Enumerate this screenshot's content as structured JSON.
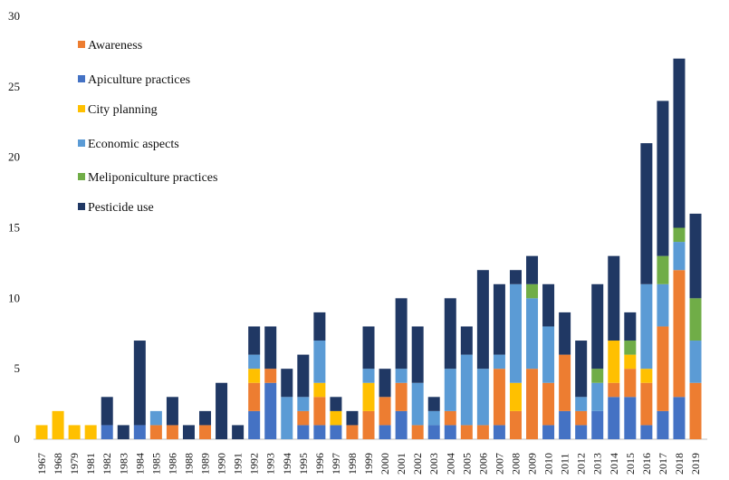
{
  "chart_data": {
    "type": "bar",
    "stacked": true,
    "title": "",
    "xlabel": "",
    "ylabel": "",
    "ylim": [
      0,
      30
    ],
    "yticks": [
      0,
      5,
      10,
      15,
      20,
      25,
      30
    ],
    "grid": false,
    "legend_position": "top-left",
    "categories": [
      "1967",
      "1968",
      "1979",
      "1981",
      "1982",
      "1983",
      "1984",
      "1985",
      "1986",
      "1988",
      "1989",
      "1990",
      "1991",
      "1992",
      "1993",
      "1994",
      "1995",
      "1996",
      "1997",
      "1998",
      "1999",
      "2000",
      "2001",
      "2002",
      "2003",
      "2004",
      "2005",
      "2006",
      "2007",
      "2008",
      "2009",
      "2010",
      "2011",
      "2012",
      "2013",
      "2014",
      "2015",
      "2016",
      "2017",
      "2018",
      "2019"
    ],
    "series": [
      {
        "name": "Apiculture practices",
        "color": "#4472C4",
        "values": [
          0,
          0,
          0,
          0,
          1,
          0,
          1,
          0,
          0,
          0,
          0,
          0,
          0,
          2,
          4,
          0,
          1,
          1,
          1,
          0,
          0,
          1,
          2,
          0,
          1,
          1,
          0,
          0,
          1,
          0,
          0,
          1,
          2,
          1,
          2,
          3,
          3,
          1,
          2,
          3,
          0
        ]
      },
      {
        "name": "Awareness",
        "color": "#ED7D31",
        "values": [
          0,
          0,
          0,
          0,
          0,
          0,
          0,
          1,
          1,
          0,
          1,
          0,
          0,
          2,
          1,
          0,
          1,
          2,
          0,
          1,
          2,
          2,
          2,
          1,
          0,
          1,
          1,
          1,
          4,
          2,
          5,
          3,
          4,
          1,
          0,
          1,
          2,
          3,
          6,
          9,
          4
        ]
      },
      {
        "name": "City planning",
        "color": "#FFC000",
        "values": [
          1,
          2,
          1,
          1,
          0,
          0,
          0,
          0,
          0,
          0,
          0,
          0,
          0,
          1,
          0,
          0,
          0,
          1,
          1,
          0,
          2,
          0,
          0,
          0,
          0,
          0,
          0,
          0,
          0,
          2,
          0,
          0,
          0,
          0,
          0,
          3,
          1,
          1,
          0,
          0,
          0
        ]
      },
      {
        "name": "Economic aspects",
        "color": "#5B9BD5",
        "values": [
          0,
          0,
          0,
          0,
          0,
          0,
          0,
          1,
          0,
          0,
          0,
          0,
          0,
          1,
          0,
          3,
          1,
          3,
          0,
          0,
          1,
          0,
          1,
          3,
          1,
          3,
          5,
          4,
          1,
          7,
          5,
          4,
          0,
          1,
          2,
          0,
          0,
          6,
          3,
          2,
          3
        ]
      },
      {
        "name": "Meliponiculture practices",
        "color": "#70AD47",
        "values": [
          0,
          0,
          0,
          0,
          0,
          0,
          0,
          0,
          0,
          0,
          0,
          0,
          0,
          0,
          0,
          0,
          0,
          0,
          0,
          0,
          0,
          0,
          0,
          0,
          0,
          0,
          0,
          0,
          0,
          0,
          1,
          0,
          0,
          0,
          1,
          0,
          1,
          0,
          2,
          1,
          3
        ]
      },
      {
        "name": "Pesticide use",
        "color": "#203864",
        "values": [
          0,
          0,
          0,
          0,
          2,
          1,
          6,
          0,
          2,
          1,
          1,
          4,
          1,
          2,
          3,
          2,
          3,
          2,
          1,
          1,
          3,
          2,
          5,
          4,
          1,
          5,
          2,
          7,
          5,
          1,
          2,
          3,
          3,
          4,
          6,
          6,
          2,
          10,
          11,
          12,
          6
        ]
      }
    ],
    "legend_order": [
      "Awareness",
      "Apiculture practices",
      "City planning",
      "Economic aspects",
      "Meliponiculture practices",
      "Pesticide use"
    ]
  }
}
